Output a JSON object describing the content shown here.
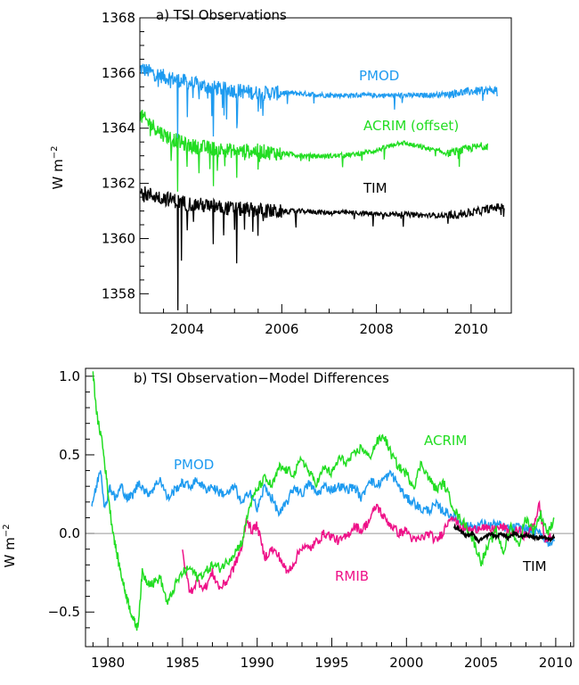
{
  "chart_data": [
    {
      "type": "line",
      "title": "a) TSI Observations",
      "ylabel": "W m",
      "ylabel_sup": "−2",
      "xlim": [
        2003.0,
        2010.85
      ],
      "ylim": [
        1357.3,
        1368.0
      ],
      "xticks": [
        2004,
        2006,
        2008,
        2010
      ],
      "yticks": [
        1358,
        1360,
        1362,
        1364,
        1366,
        1368
      ],
      "series": [
        {
          "name": "PMOD",
          "color": "#1e9bf0",
          "x_range": [
            2003.0,
            2010.55
          ],
          "trend": [
            [
              2003.0,
              1366.2
            ],
            [
              2003.5,
              1365.9
            ],
            [
              2004.0,
              1365.7
            ],
            [
              2004.5,
              1365.5
            ],
            [
              2005.0,
              1365.4
            ],
            [
              2005.5,
              1365.3
            ],
            [
              2006.0,
              1365.3
            ],
            [
              2006.5,
              1365.25
            ],
            [
              2007.0,
              1365.2
            ],
            [
              2007.5,
              1365.2
            ],
            [
              2008.0,
              1365.2
            ],
            [
              2008.5,
              1365.2
            ],
            [
              2009.0,
              1365.2
            ],
            [
              2009.5,
              1365.25
            ],
            [
              2010.0,
              1365.35
            ],
            [
              2010.55,
              1365.4
            ]
          ],
          "dips": [
            [
              2003.8,
              1363.6
            ],
            [
              2004.55,
              1363.7
            ],
            [
              2005.05,
              1364.0
            ],
            [
              2004.0,
              1364.4
            ],
            [
              2005.5,
              1364.6
            ]
          ]
        },
        {
          "name": "ACRIM (offset)",
          "color": "#22dd22",
          "x_range": [
            2003.0,
            2010.35
          ],
          "trend": [
            [
              2003.0,
              1364.5
            ],
            [
              2003.5,
              1363.8
            ],
            [
              2004.0,
              1363.4
            ],
            [
              2004.5,
              1363.3
            ],
            [
              2005.0,
              1363.2
            ],
            [
              2005.5,
              1363.2
            ],
            [
              2006.0,
              1363.1
            ],
            [
              2006.5,
              1363.0
            ],
            [
              2007.0,
              1363.0
            ],
            [
              2007.5,
              1363.05
            ],
            [
              2008.0,
              1363.2
            ],
            [
              2008.5,
              1363.5
            ],
            [
              2009.0,
              1363.3
            ],
            [
              2009.5,
              1363.1
            ],
            [
              2010.0,
              1363.3
            ],
            [
              2010.35,
              1363.4
            ]
          ],
          "dips": [
            [
              2003.8,
              1361.7
            ],
            [
              2004.55,
              1361.9
            ],
            [
              2005.05,
              1362.2
            ],
            [
              2004.0,
              1362.6
            ],
            [
              2009.75,
              1362.6
            ],
            [
              2005.5,
              1362.5
            ]
          ]
        },
        {
          "name": "TIM",
          "color": "#000000",
          "x_range": [
            2003.0,
            2010.7
          ],
          "trend": [
            [
              2003.0,
              1361.7
            ],
            [
              2003.5,
              1361.5
            ],
            [
              2004.0,
              1361.3
            ],
            [
              2004.5,
              1361.2
            ],
            [
              2005.0,
              1361.1
            ],
            [
              2005.5,
              1361.05
            ],
            [
              2006.0,
              1361.0
            ],
            [
              2006.5,
              1361.0
            ],
            [
              2007.0,
              1360.95
            ],
            [
              2007.5,
              1360.95
            ],
            [
              2008.0,
              1360.9
            ],
            [
              2008.5,
              1360.9
            ],
            [
              2009.0,
              1360.85
            ],
            [
              2009.5,
              1360.85
            ],
            [
              2010.0,
              1360.95
            ],
            [
              2010.7,
              1361.2
            ]
          ],
          "dips": [
            [
              2003.8,
              1357.4
            ],
            [
              2003.88,
              1359.2
            ],
            [
              2005.05,
              1359.1
            ],
            [
              2004.55,
              1359.8
            ],
            [
              2004.0,
              1360.3
            ],
            [
              2005.5,
              1360.1
            ],
            [
              2006.3,
              1360.4
            ]
          ]
        }
      ],
      "labels": [
        "PMOD",
        "ACRIM (offset)",
        "TIM"
      ]
    },
    {
      "type": "line",
      "title": "b) TSI Observation−Model Differences",
      "ylabel": "W m",
      "ylabel_sup": "−2",
      "xlim": [
        1978.5,
        2011.2
      ],
      "ylim": [
        -0.72,
        1.05
      ],
      "xticks": [
        1980,
        1985,
        1990,
        1995,
        2000,
        2005,
        2010
      ],
      "yticks": [
        -0.5,
        0.0,
        0.5,
        1.0
      ],
      "yticklabels": [
        "−0.5",
        "0.0",
        "0.5",
        "1.0"
      ],
      "zero_line": true,
      "series": [
        {
          "name": "PMOD",
          "color": "#1e9bf0",
          "x": [
            1978.9,
            1979.2,
            1979.5,
            1979.8,
            1980.1,
            1980.5,
            1980.9,
            1981.3,
            1981.7,
            1982.1,
            1982.6,
            1983.0,
            1983.5,
            1984.0,
            1984.5,
            1985.0,
            1985.5,
            1986.0,
            1986.5,
            1987.0,
            1987.5,
            1988.0,
            1988.5,
            1989.0,
            1989.5,
            1990.0,
            1990.5,
            1991.0,
            1991.5,
            1992.0,
            1992.5,
            1993.0,
            1993.5,
            1994.0,
            1994.5,
            1995.0,
            1995.5,
            1996.0,
            1996.5,
            1997.0,
            1997.5,
            1998.0,
            1998.5,
            1999.0,
            1999.5,
            2000.0,
            2000.5,
            2001.0,
            2001.5,
            2002.0,
            2002.5,
            2003.0,
            2003.5,
            2004.0,
            2004.5,
            2005.0,
            2005.5,
            2006.0,
            2006.5,
            2007.0,
            2007.5,
            2008.0,
            2008.5,
            2009.0,
            2009.5,
            2009.9
          ],
          "y": [
            0.18,
            0.28,
            0.42,
            0.15,
            0.3,
            0.22,
            0.3,
            0.22,
            0.25,
            0.33,
            0.25,
            0.28,
            0.35,
            0.22,
            0.28,
            0.32,
            0.3,
            0.34,
            0.28,
            0.3,
            0.26,
            0.25,
            0.3,
            0.18,
            0.28,
            0.15,
            0.3,
            0.22,
            0.12,
            0.2,
            0.3,
            0.25,
            0.32,
            0.25,
            0.3,
            0.28,
            0.3,
            0.28,
            0.3,
            0.22,
            0.35,
            0.3,
            0.35,
            0.38,
            0.3,
            0.22,
            0.2,
            0.15,
            0.15,
            0.18,
            0.14,
            0.12,
            0.08,
            0.05,
            0.04,
            0.06,
            0.05,
            0.06,
            0.04,
            0.03,
            0.04,
            0.03,
            0.01,
            0.0,
            -0.06,
            -0.05
          ]
        },
        {
          "name": "ACRIM",
          "color": "#22dd22",
          "x": [
            1979.0,
            1979.3,
            1979.6,
            1979.9,
            1980.2,
            1980.5,
            1980.8,
            1981.1,
            1981.4,
            1981.7,
            1982.0,
            1982.3,
            1982.6,
            1983.0,
            1983.5,
            1984.0,
            1984.5,
            1985.0,
            1985.5,
            1986.0,
            1986.5,
            1987.0,
            1987.5,
            1988.0,
            1988.5,
            1989.0,
            1989.5,
            1990.0,
            1990.5,
            1991.0,
            1991.5,
            1992.0,
            1992.5,
            1993.0,
            1993.5,
            1994.0,
            1994.5,
            1995.0,
            1995.5,
            1996.0,
            1996.5,
            1997.0,
            1997.5,
            1998.0,
            1998.5,
            1999.0,
            1999.5,
            2000.0,
            2000.5,
            2001.0,
            2001.5,
            2002.0,
            2002.5,
            2003.0,
            2003.5,
            2004.0,
            2004.5,
            2005.0,
            2005.5,
            2006.0,
            2006.5,
            2007.0,
            2007.5,
            2008.0,
            2008.5,
            2009.0,
            2009.5,
            2009.9
          ],
          "y": [
            1.02,
            0.72,
            0.6,
            0.35,
            0.1,
            -0.08,
            -0.22,
            -0.35,
            -0.45,
            -0.55,
            -0.6,
            -0.25,
            -0.3,
            -0.32,
            -0.28,
            -0.45,
            -0.33,
            -0.25,
            -0.22,
            -0.28,
            -0.25,
            -0.2,
            -0.22,
            -0.18,
            -0.12,
            -0.05,
            0.18,
            0.28,
            0.35,
            0.3,
            0.42,
            0.4,
            0.38,
            0.48,
            0.38,
            0.32,
            0.42,
            0.38,
            0.48,
            0.45,
            0.5,
            0.55,
            0.48,
            0.58,
            0.62,
            0.5,
            0.42,
            0.38,
            0.3,
            0.45,
            0.35,
            0.28,
            0.32,
            0.2,
            0.1,
            0.05,
            -0.05,
            -0.18,
            -0.08,
            0.02,
            -0.12,
            0.05,
            -0.08,
            0.1,
            0.02,
            0.12,
            0.0,
            0.1
          ]
        },
        {
          "name": "RMIB",
          "color": "#ee1188",
          "x": [
            1985.0,
            1985.5,
            1986.0,
            1986.5,
            1987.0,
            1987.5,
            1988.0,
            1988.5,
            1989.0,
            1989.3,
            1989.6,
            1990.0,
            1990.5,
            1991.0,
            1991.5,
            1992.0,
            1992.5,
            1993.0,
            1993.5,
            1994.0,
            1994.5,
            1995.0,
            1995.5,
            1996.0,
            1996.5,
            1997.0,
            1997.5,
            1998.0,
            1998.5,
            1999.0,
            1999.5,
            2000.0,
            2000.5,
            2001.0,
            2001.5,
            2002.0,
            2002.5,
            2003.0,
            2003.5,
            2004.0,
            2004.5,
            2005.0,
            2005.5,
            2006.0,
            2006.5,
            2007.0,
            2007.5,
            2008.0,
            2008.5,
            2008.9,
            2009.3,
            2009.7
          ],
          "y": [
            -0.12,
            -0.38,
            -0.3,
            -0.35,
            -0.25,
            -0.35,
            -0.3,
            -0.2,
            -0.08,
            0.1,
            0.02,
            0.05,
            -0.15,
            -0.1,
            -0.15,
            -0.25,
            -0.18,
            -0.08,
            -0.1,
            -0.05,
            0.0,
            -0.02,
            -0.05,
            -0.02,
            0.05,
            0.02,
            0.08,
            0.18,
            0.1,
            0.05,
            0.0,
            0.02,
            -0.05,
            -0.03,
            0.0,
            -0.05,
            0.02,
            0.12,
            0.05,
            0.03,
            0.02,
            0.05,
            0.02,
            0.03,
            0.04,
            0.0,
            0.02,
            -0.02,
            0.05,
            0.18,
            -0.05,
            -0.02
          ]
        },
        {
          "name": "TIM",
          "color": "#000000",
          "x": [
            2003.2,
            2003.6,
            2004.0,
            2004.4,
            2004.8,
            2005.2,
            2005.6,
            2006.0,
            2006.4,
            2006.8,
            2007.2,
            2007.6,
            2008.0,
            2008.4,
            2008.8,
            2009.2,
            2009.6,
            2009.9
          ],
          "y": [
            0.04,
            0.02,
            -0.02,
            0.0,
            -0.05,
            -0.03,
            0.0,
            -0.02,
            0.0,
            -0.03,
            0.0,
            -0.02,
            -0.01,
            -0.02,
            -0.03,
            -0.02,
            -0.04,
            -0.02
          ]
        }
      ],
      "labels": [
        "PMOD",
        "ACRIM",
        "RMIB",
        "TIM"
      ]
    }
  ]
}
